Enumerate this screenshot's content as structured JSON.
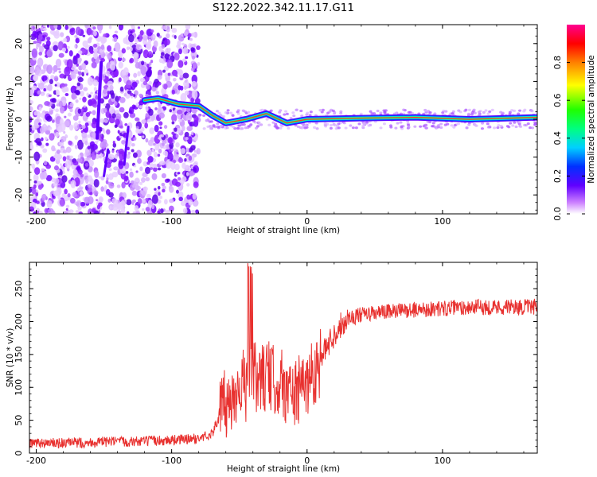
{
  "title": "S122.2022.342.11.17.G11",
  "chart_data": [
    {
      "type": "heatmap",
      "xlabel": "Height of straight line (km)",
      "ylabel": "Frequency (Hz)",
      "xlim": [
        -205,
        170
      ],
      "ylim": [
        -25,
        25
      ],
      "xticks": [
        -200,
        -100,
        0,
        100
      ],
      "yticks": [
        -20,
        -10,
        0,
        10,
        20
      ],
      "colorbar": {
        "label": "Normalized spectral amplitude",
        "range": [
          0,
          1
        ],
        "ticks": [
          "0.0",
          "0.2",
          "0.4",
          "0.6",
          "0.8"
        ],
        "colormap": "gist_rainbow_r"
      },
      "signal_trace": [
        {
          "x": -120,
          "y": 5
        },
        {
          "x": -110,
          "y": 5.5
        },
        {
          "x": -95,
          "y": 4
        },
        {
          "x": -80,
          "y": 3.5
        },
        {
          "x": -70,
          "y": 1
        },
        {
          "x": -60,
          "y": -1
        },
        {
          "x": -45,
          "y": 0
        },
        {
          "x": -30,
          "y": 1.5
        },
        {
          "x": -15,
          "y": -1
        },
        {
          "x": 0,
          "y": 0
        },
        {
          "x": 40,
          "y": 0.3
        },
        {
          "x": 80,
          "y": 0.5
        },
        {
          "x": 120,
          "y": 0
        },
        {
          "x": 170,
          "y": 0.5
        }
      ]
    },
    {
      "type": "line",
      "xlabel": "Height of straight line (km)",
      "ylabel": "SNR (10 * v/v)",
      "xlim": [
        -205,
        170
      ],
      "ylim": [
        0,
        290
      ],
      "xticks": [
        -200,
        -100,
        0,
        100
      ],
      "yticks": [
        0,
        50,
        100,
        150,
        200,
        250
      ],
      "color": "#e8312f",
      "series": [
        {
          "x": [
            -205,
            -180,
            -150,
            -120,
            -100,
            -80,
            -70,
            -62,
            -55,
            -50,
            -45,
            -40,
            -35,
            -30,
            -25,
            -20,
            -15,
            -10,
            -5,
            0,
            5,
            10,
            15,
            20,
            25,
            30,
            40,
            60,
            80,
            100,
            120,
            140,
            170
          ],
          "values": [
            15,
            15,
            17,
            18,
            20,
            22,
            30,
            70,
            80,
            110,
            100,
            120,
            110,
            120,
            110,
            110,
            95,
            90,
            95,
            110,
            125,
            140,
            165,
            180,
            195,
            205,
            210,
            215,
            218,
            220,
            222,
            222,
            222
          ]
        }
      ]
    }
  ]
}
